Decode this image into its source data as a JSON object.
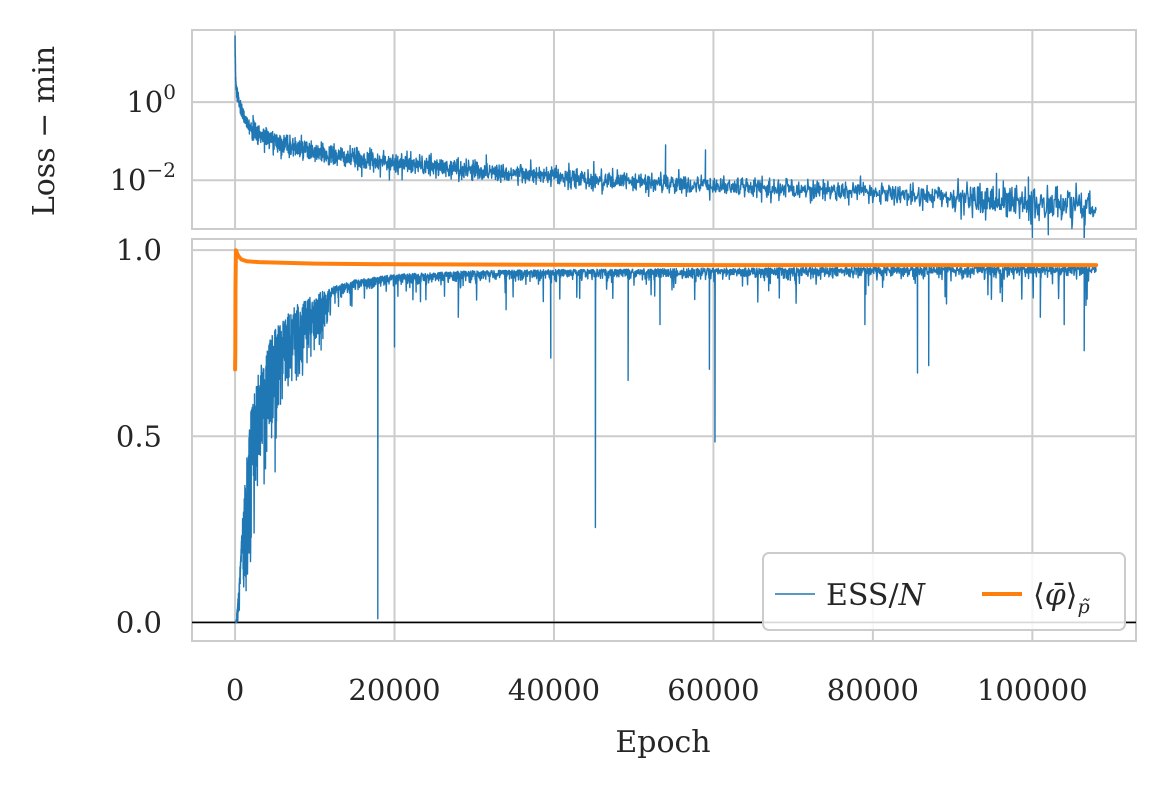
{
  "chart_data": [
    {
      "type": "line",
      "panel": "top",
      "yscale": "log",
      "ylabel": "Loss − min",
      "xlim": [
        -5400,
        113000
      ],
      "ylim_log10": [
        -3.25,
        1.85
      ],
      "y_ticks": [
        {
          "value": 1,
          "label_base": "10",
          "label_exp": "0"
        },
        {
          "value": 0.01,
          "label_base": "10",
          "label_exp": "−2"
        }
      ],
      "x_ticks": [
        0,
        20000,
        40000,
        60000,
        80000,
        100000
      ],
      "grid": true,
      "series": [
        {
          "color": "#1f77b4",
          "x": [
            0,
            100,
            300,
            600,
            1000,
            2000,
            3000,
            5000,
            7500,
            10000,
            15000,
            20000,
            25000,
            30000,
            35000,
            40000,
            45000,
            50000,
            55000,
            60000,
            65000,
            70000,
            75000,
            80000,
            85000,
            90000,
            95000,
            100000,
            105000,
            108000
          ],
          "y": [
            30,
            3.0,
            1.5,
            0.8,
            0.45,
            0.22,
            0.15,
            0.1,
            0.07,
            0.05,
            0.035,
            0.028,
            0.022,
            0.018,
            0.015,
            0.012,
            0.01,
            0.009,
            0.008,
            0.0072,
            0.0065,
            0.006,
            0.0055,
            0.0048,
            0.0042,
            0.0036,
            0.003,
            0.0026,
            0.0022,
            0.002
          ],
          "spikes": [
            {
              "x": 54000,
              "y": 0.08
            },
            {
              "x": 59000,
              "y": 0.06
            },
            {
              "x": 45000,
              "y": 0.03
            },
            {
              "x": 95500,
              "y": 0.015
            },
            {
              "x": 99500,
              "y": 0.012
            }
          ],
          "dips": [
            {
              "x": 100000,
              "y": 0.0003
            },
            {
              "x": 102000,
              "y": 0.0004
            },
            {
              "x": 106500,
              "y": 0.0002
            }
          ]
        }
      ]
    },
    {
      "type": "line",
      "panel": "bottom",
      "xlabel": "Epoch",
      "xlim": [
        -5400,
        113000
      ],
      "ylim": [
        -0.05,
        1.03
      ],
      "y_ticks": [
        "0.0",
        "0.5",
        "1.0"
      ],
      "x_ticks": [
        "0",
        "20000",
        "40000",
        "60000",
        "80000",
        "100000"
      ],
      "grid": true,
      "hline_y": 0,
      "legend": {
        "placement": "lower-right",
        "entries": [
          {
            "label_main": "ESS/",
            "label_italic": "N",
            "color": "#1f77b4"
          },
          {
            "label_main": "⟨",
            "label_italic": "φ̄",
            "label_close": "⟩",
            "label_sub": "p̃",
            "color": "#ff7f0e"
          }
        ]
      },
      "series": [
        {
          "color": "#1f77b4",
          "x": [
            0,
            200,
            500,
            1000,
            1500,
            2000,
            3000,
            4000,
            5000,
            6000,
            8000,
            10000,
            12000,
            15000,
            20000,
            25000,
            30000,
            40000,
            50000,
            60000,
            70000,
            80000,
            90000,
            100000,
            108000
          ],
          "y": [
            0.0,
            0.02,
            0.1,
            0.3,
            0.45,
            0.57,
            0.68,
            0.74,
            0.79,
            0.82,
            0.86,
            0.88,
            0.9,
            0.92,
            0.935,
            0.94,
            0.945,
            0.948,
            0.95,
            0.952,
            0.953,
            0.955,
            0.956,
            0.957,
            0.958
          ],
          "dips": [
            {
              "x": 17900,
              "y": 0.01
            },
            {
              "x": 45200,
              "y": 0.255
            },
            {
              "x": 60200,
              "y": 0.485
            },
            {
              "x": 59500,
              "y": 0.68
            },
            {
              "x": 49300,
              "y": 0.65
            },
            {
              "x": 39600,
              "y": 0.71
            },
            {
              "x": 53300,
              "y": 0.8
            },
            {
              "x": 85600,
              "y": 0.67
            },
            {
              "x": 87000,
              "y": 0.69
            },
            {
              "x": 101000,
              "y": 0.82
            },
            {
              "x": 104000,
              "y": 0.8
            },
            {
              "x": 106500,
              "y": 0.73
            },
            {
              "x": 79000,
              "y": 0.8
            },
            {
              "x": 20000,
              "y": 0.74
            },
            {
              "x": 28000,
              "y": 0.82
            },
            {
              "x": 34000,
              "y": 0.84
            }
          ]
        },
        {
          "color": "#ff7f0e",
          "x": [
            0,
            30,
            60,
            100,
            200,
            400,
            800,
            1500,
            3000,
            6000,
            10000,
            20000,
            40000,
            60000,
            80000,
            100000,
            108000
          ],
          "y": [
            0.68,
            0.72,
            0.9,
            1.0,
            0.995,
            0.985,
            0.975,
            0.97,
            0.968,
            0.966,
            0.964,
            0.962,
            0.961,
            0.96,
            0.96,
            0.96,
            0.96
          ]
        }
      ]
    }
  ]
}
